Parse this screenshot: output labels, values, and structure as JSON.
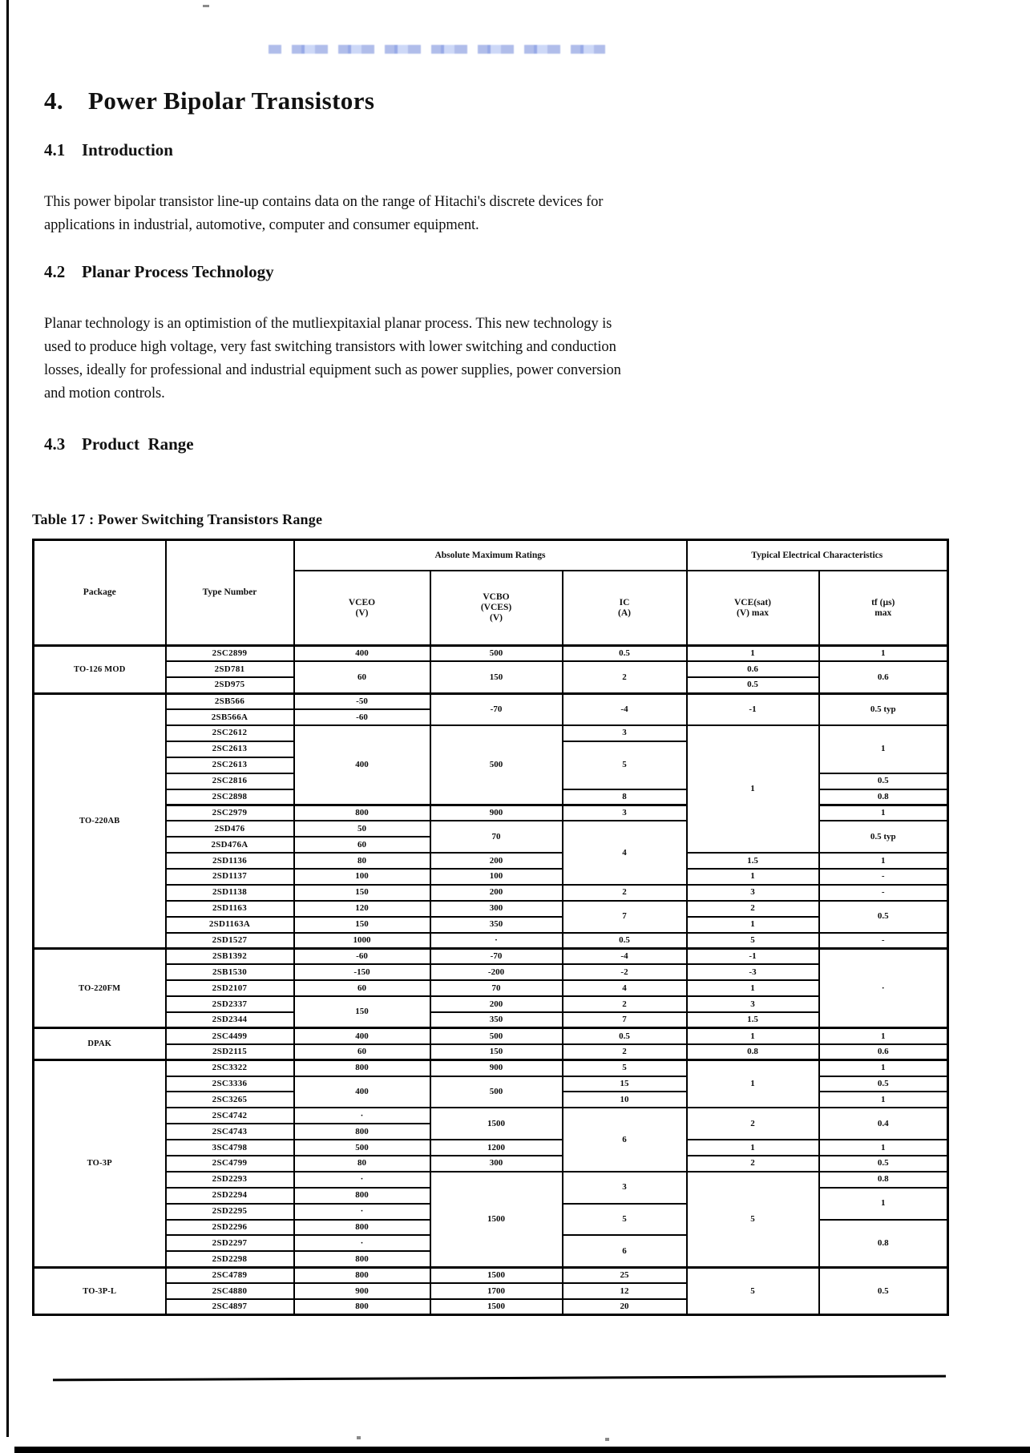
{
  "page": {
    "title_number": "4.",
    "title": "Power Bipolar Transistors",
    "s41_number": "4.1",
    "s41_label": "Introduction",
    "p1_lines": [
      "This power bipolar transistor line-up contains data on the range of Hitachi's discrete devices for",
      "applications in industrial, automotive, computer and consumer equipment."
    ],
    "s42_number": "4.2",
    "s42_label": "Planar Process Technology",
    "p2_lines": [
      "Planar technology is an optimistion of the mutliexpitaxial planar process.  This new technology is",
      "used to produce high voltage, very fast switching transistors with lower switching and conduction",
      "losses, ideally for professional and industrial equipment such as power supplies, power conversion",
      "and motion controls."
    ],
    "s43_number": "4.3",
    "s43_label": "Product  Range"
  },
  "table": {
    "caption": "Table 17 : Power Switching Transistors Range",
    "header": {
      "package": "Package",
      "type_number": "Type Number",
      "abs_max": "Absolute Maximum Ratings",
      "typ_elec": "Typical Electrical Characteristics",
      "cols": [
        {
          "lines": [
            "VCEO",
            "(V)"
          ]
        },
        {
          "lines": [
            "VCBO",
            "(VCES)",
            "(V)"
          ]
        },
        {
          "lines": [
            "IC",
            "(A)"
          ]
        },
        {
          "lines": [
            "VCE(sat)",
            "(V) max"
          ]
        },
        {
          "lines": [
            "tf (µs)",
            "max"
          ]
        }
      ]
    },
    "rows": [
      {
        "sep": true,
        "cells": [
          {
            "t": "TO-126 MOD",
            "rs": 3,
            "c": "pkg"
          },
          {
            "t": "2SC2899",
            "c": "type"
          },
          {
            "t": "400"
          },
          {
            "t": "500"
          },
          {
            "t": "0.5"
          },
          {
            "t": "1"
          },
          {
            "t": "1"
          }
        ]
      },
      {
        "cells": [
          {
            "t": "2SD781",
            "c": "type"
          },
          {
            "t": "60",
            "rs": 2
          },
          {
            "t": "150",
            "rs": 2
          },
          {
            "t": "2",
            "rs": 2
          },
          {
            "t": "0.6"
          },
          {
            "t": "0.6",
            "rs": 2
          }
        ]
      },
      {
        "cells": [
          {
            "t": "2SD975",
            "c": "type"
          },
          {
            "t": "0.5"
          }
        ]
      },
      {
        "sep": true,
        "cells": [
          {
            "t": "TO-220AB",
            "rs": 16,
            "c": "pkg"
          },
          {
            "t": "2SB566",
            "c": "type"
          },
          {
            "t": "-50"
          },
          {
            "t": "-70",
            "rs": 2
          },
          {
            "t": "-4",
            "rs": 2
          },
          {
            "t": "-1",
            "rs": 2
          },
          {
            "t": "0.5 typ",
            "rs": 2
          }
        ]
      },
      {
        "cells": [
          {
            "t": "2SB566A",
            "c": "type"
          },
          {
            "t": "-60"
          }
        ]
      },
      {
        "cells": [
          {
            "t": "2SC2612",
            "c": "type"
          },
          {
            "t": "400",
            "rs": 5
          },
          {
            "t": "500",
            "rs": 5
          },
          {
            "t": "3"
          },
          {
            "t": "1",
            "rs": 8
          },
          {
            "t": "1",
            "rs": 3
          }
        ]
      },
      {
        "cells": [
          {
            "t": "2SC2613",
            "c": "type"
          },
          {
            "t": "5",
            "rs": 3
          }
        ]
      },
      {
        "cells": [
          {
            "t": "2SC2613",
            "c": "type"
          }
        ]
      },
      {
        "cells": [
          {
            "t": "2SC2816",
            "c": "type"
          },
          {
            "t": "0.5"
          }
        ]
      },
      {
        "cells": [
          {
            "t": "2SC2898",
            "c": "type"
          },
          {
            "t": "8"
          },
          {
            "t": "0.8"
          }
        ]
      },
      {
        "sep": true,
        "cells": [
          {
            "t": "2SC2979",
            "c": "type"
          },
          {
            "t": "800"
          },
          {
            "t": "900"
          },
          {
            "t": "3"
          },
          {
            "t": "1"
          }
        ]
      },
      {
        "cells": [
          {
            "t": "2SD476",
            "c": "type"
          },
          {
            "t": "50"
          },
          {
            "t": "70",
            "rs": 2
          },
          {
            "t": "4",
            "rs": 4
          },
          {
            "t": "0.5 typ",
            "rs": 2
          }
        ]
      },
      {
        "cells": [
          {
            "t": "2SD476A",
            "c": "type"
          },
          {
            "t": "60"
          }
        ]
      },
      {
        "cells": [
          {
            "t": "2SD1136",
            "c": "type"
          },
          {
            "t": "80"
          },
          {
            "t": "200"
          },
          {
            "t": "1.5"
          },
          {
            "t": "1"
          }
        ]
      },
      {
        "cells": [
          {
            "t": "2SD1137",
            "c": "type"
          },
          {
            "t": "100"
          },
          {
            "t": "100"
          },
          {
            "t": "1"
          },
          {
            "t": "-"
          }
        ]
      },
      {
        "cells": [
          {
            "t": "2SD1138",
            "c": "type"
          },
          {
            "t": "150"
          },
          {
            "t": "200"
          },
          {
            "t": "2"
          },
          {
            "t": "3"
          },
          {
            "t": "-"
          }
        ]
      },
      {
        "cells": [
          {
            "t": "2SD1163",
            "c": "type"
          },
          {
            "t": "120"
          },
          {
            "t": "300"
          },
          {
            "t": "7",
            "rs": 2
          },
          {
            "t": "2"
          },
          {
            "t": "0.5",
            "rs": 2
          }
        ]
      },
      {
        "cells": [
          {
            "t": "2SD1163A",
            "c": "type"
          },
          {
            "t": "150"
          },
          {
            "t": "350"
          },
          {
            "t": "1"
          }
        ]
      },
      {
        "cells": [
          {
            "t": "2SD1527",
            "c": "type"
          },
          {
            "t": "1000"
          },
          {
            "t": "·"
          },
          {
            "t": "0.5"
          },
          {
            "t": "5"
          },
          {
            "t": "-"
          }
        ]
      },
      {
        "sep": true,
        "cells": [
          {
            "t": "TO-220FM",
            "rs": 5,
            "c": "pkg"
          },
          {
            "t": "2SB1392",
            "c": "type"
          },
          {
            "t": "-60"
          },
          {
            "t": "-70"
          },
          {
            "t": "-4"
          },
          {
            "t": "-1"
          },
          {
            "t": "·",
            "rs": 5
          }
        ]
      },
      {
        "cells": [
          {
            "t": "2SB1530",
            "c": "type"
          },
          {
            "t": "-150"
          },
          {
            "t": "-200"
          },
          {
            "t": "-2"
          },
          {
            "t": "-3"
          }
        ]
      },
      {
        "cells": [
          {
            "t": "2SD2107",
            "c": "type"
          },
          {
            "t": "60"
          },
          {
            "t": "70"
          },
          {
            "t": "4"
          },
          {
            "t": "1"
          }
        ]
      },
      {
        "cells": [
          {
            "t": "2SD2337",
            "c": "type"
          },
          {
            "t": "150",
            "rs": 2
          },
          {
            "t": "200"
          },
          {
            "t": "2"
          },
          {
            "t": "3"
          }
        ]
      },
      {
        "cells": [
          {
            "t": "2SD2344",
            "c": "type"
          },
          {
            "t": "350"
          },
          {
            "t": "7"
          },
          {
            "t": "1.5"
          }
        ]
      },
      {
        "sep": true,
        "cells": [
          {
            "t": "DPAK",
            "rs": 2,
            "c": "pkg"
          },
          {
            "t": "2SC4499",
            "c": "type"
          },
          {
            "t": "400"
          },
          {
            "t": "500"
          },
          {
            "t": "0.5"
          },
          {
            "t": "1"
          },
          {
            "t": "1"
          }
        ]
      },
      {
        "cells": [
          {
            "t": "2SD2115",
            "c": "type"
          },
          {
            "t": "60"
          },
          {
            "t": "150"
          },
          {
            "t": "2"
          },
          {
            "t": "0.8"
          },
          {
            "t": "0.6"
          }
        ]
      },
      {
        "sep": true,
        "cells": [
          {
            "t": "TO-3P",
            "rs": 13,
            "c": "pkg"
          },
          {
            "t": "2SC3322",
            "c": "type"
          },
          {
            "t": "800"
          },
          {
            "t": "900"
          },
          {
            "t": "5"
          },
          {
            "t": "1",
            "rs": 3
          },
          {
            "t": "1"
          }
        ]
      },
      {
        "cells": [
          {
            "t": "2SC3336",
            "c": "type"
          },
          {
            "t": "400",
            "rs": 2
          },
          {
            "t": "500",
            "rs": 2
          },
          {
            "t": "15"
          },
          {
            "t": "0.5"
          }
        ]
      },
      {
        "cells": [
          {
            "t": "2SC3265",
            "c": "type"
          },
          {
            "t": "10"
          },
          {
            "t": "1"
          }
        ]
      },
      {
        "cells": [
          {
            "t": "2SC4742",
            "c": "type"
          },
          {
            "t": "·"
          },
          {
            "t": "1500",
            "rs": 2
          },
          {
            "t": "6",
            "rs": 4
          },
          {
            "t": "2",
            "rs": 2
          },
          {
            "t": "0.4",
            "rs": 2
          }
        ]
      },
      {
        "cells": [
          {
            "t": "2SC4743",
            "c": "type"
          },
          {
            "t": "800"
          }
        ]
      },
      {
        "cells": [
          {
            "t": "3SC4798",
            "c": "type"
          },
          {
            "t": "500"
          },
          {
            "t": "1200"
          },
          {
            "t": "1"
          },
          {
            "t": "1"
          }
        ]
      },
      {
        "cells": [
          {
            "t": "2SC4799",
            "c": "type"
          },
          {
            "t": "80"
          },
          {
            "t": "300"
          },
          {
            "t": "2"
          },
          {
            "t": "0.5"
          }
        ]
      },
      {
        "cells": [
          {
            "t": "2SD2293",
            "c": "type"
          },
          {
            "t": "·"
          },
          {
            "t": "1500",
            "rs": 6
          },
          {
            "t": "3",
            "rs": 2
          },
          {
            "t": "5",
            "rs": 6
          },
          {
            "t": "0.8"
          }
        ]
      },
      {
        "cells": [
          {
            "t": "2SD2294",
            "c": "type"
          },
          {
            "t": "800"
          },
          {
            "t": "1",
            "rs": 2
          }
        ]
      },
      {
        "cells": [
          {
            "t": "2SD2295",
            "c": "type"
          },
          {
            "t": "·"
          },
          {
            "t": "5",
            "rs": 2
          }
        ]
      },
      {
        "cells": [
          {
            "t": "2SD2296",
            "c": "type"
          },
          {
            "t": "800"
          },
          {
            "t": "0.8",
            "rs": 3
          }
        ]
      },
      {
        "cells": [
          {
            "t": "2SD2297",
            "c": "type"
          },
          {
            "t": "·"
          },
          {
            "t": "6",
            "rs": 2
          }
        ]
      },
      {
        "cells": [
          {
            "t": "2SD2298",
            "c": "type"
          },
          {
            "t": "800"
          }
        ]
      },
      {
        "sep": true,
        "cells": [
          {
            "t": "TO-3P-L",
            "rs": 3,
            "c": "pkg"
          },
          {
            "t": "2SC4789",
            "c": "type"
          },
          {
            "t": "800"
          },
          {
            "t": "1500"
          },
          {
            "t": "25"
          },
          {
            "t": "5",
            "rs": 3
          },
          {
            "t": "0.5",
            "rs": 3
          }
        ]
      },
      {
        "cells": [
          {
            "t": "2SC4880",
            "c": "type"
          },
          {
            "t": "900"
          },
          {
            "t": "1700"
          },
          {
            "t": "12"
          }
        ]
      },
      {
        "cells": [
          {
            "t": "2SC4897",
            "c": "type"
          },
          {
            "t": "800"
          },
          {
            "t": "1500"
          },
          {
            "t": "20"
          }
        ]
      }
    ]
  }
}
